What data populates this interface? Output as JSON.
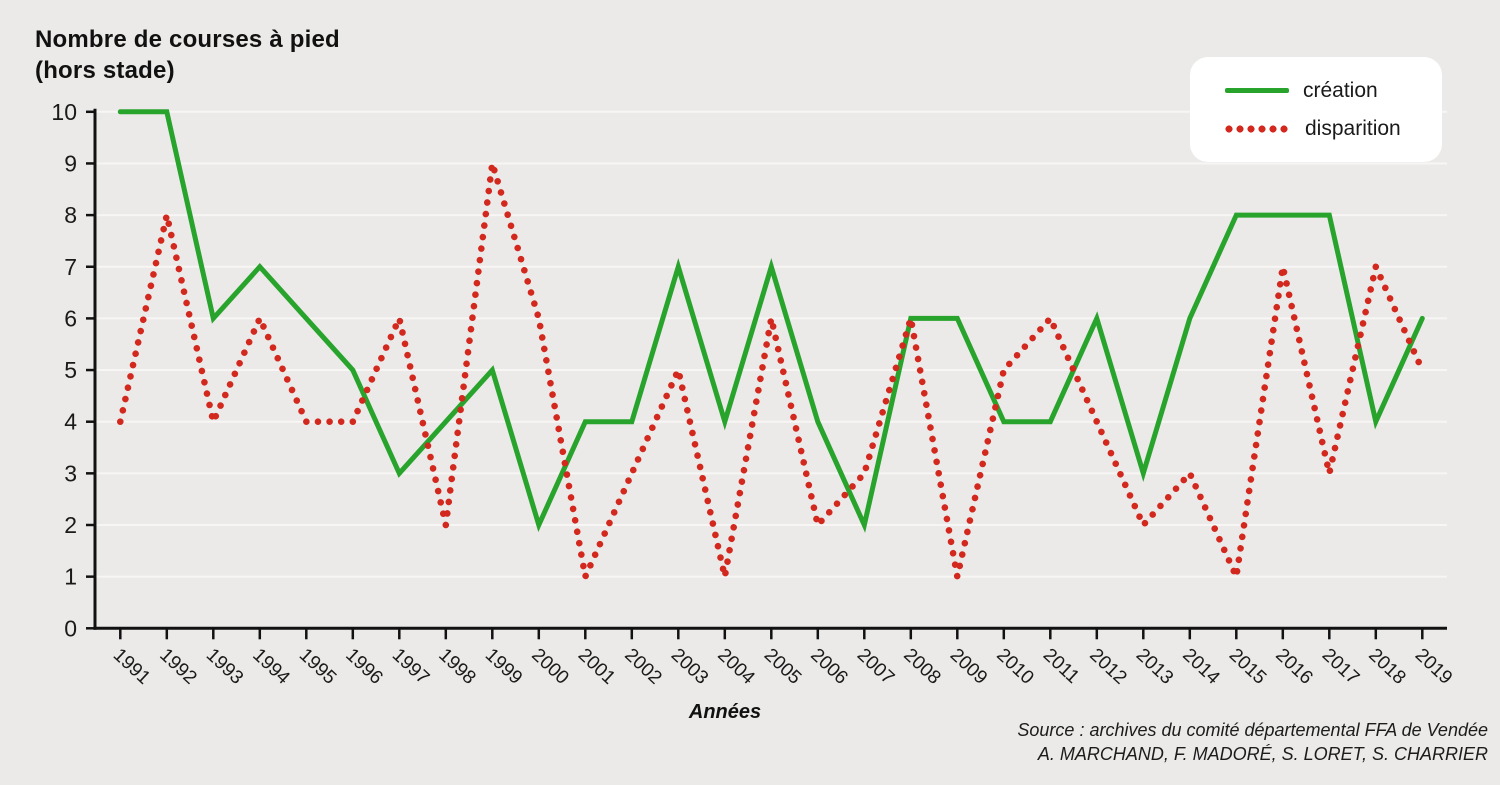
{
  "title": {
    "line1": "Nombre de courses à pied",
    "line2": "(hors stade)"
  },
  "legend": {
    "items": [
      {
        "label": "création",
        "color": "#28a42d",
        "style": "solid"
      },
      {
        "label": "disparition",
        "color": "#d2281e",
        "style": "dotted"
      }
    ]
  },
  "x_axis_label": "Années",
  "source": {
    "line1": "Source : archives du comité départemental FFA de Vendée",
    "line2": "A. MARCHAND, F. MADORÉ, S. LORET, S. CHARRIER"
  },
  "chart_data": {
    "type": "line",
    "title": "Nombre de courses à pied (hors stade)",
    "xlabel": "Années",
    "ylabel": "Nombre de courses à pied (hors stade)",
    "x": [
      "1991",
      "1992",
      "1993",
      "1994",
      "1995",
      "1996",
      "1997",
      "1998",
      "1999",
      "2000",
      "2001",
      "2002",
      "2003",
      "2004",
      "2005",
      "2006",
      "2007",
      "2008",
      "2009",
      "2010",
      "2011",
      "2012",
      "2013",
      "2014",
      "2015",
      "2016",
      "2017",
      "2018",
      "2019"
    ],
    "series": [
      {
        "name": "création",
        "color": "#28a42d",
        "line_style": "solid",
        "values": [
          10,
          10,
          6,
          7,
          6,
          5,
          3,
          4,
          5,
          2,
          4,
          4,
          7,
          4,
          7,
          4,
          2,
          6,
          6,
          4,
          4,
          6,
          3,
          6,
          8,
          8,
          8,
          4,
          6
        ]
      },
      {
        "name": "disparition",
        "color": "#d2281e",
        "line_style": "dotted",
        "values": [
          4,
          8,
          4,
          6,
          4,
          4,
          6,
          2,
          9,
          6,
          1,
          3,
          5,
          1,
          6,
          2,
          3,
          6,
          1,
          5,
          6,
          4,
          2,
          3,
          1,
          7,
          3,
          7,
          5
        ]
      }
    ],
    "ylim": [
      0,
      10
    ],
    "yticks": [
      0,
      1,
      2,
      3,
      4,
      5,
      6,
      7,
      8,
      9,
      10
    ],
    "grid": "horizontal-white-gridlines",
    "legend_position": "top-right"
  }
}
